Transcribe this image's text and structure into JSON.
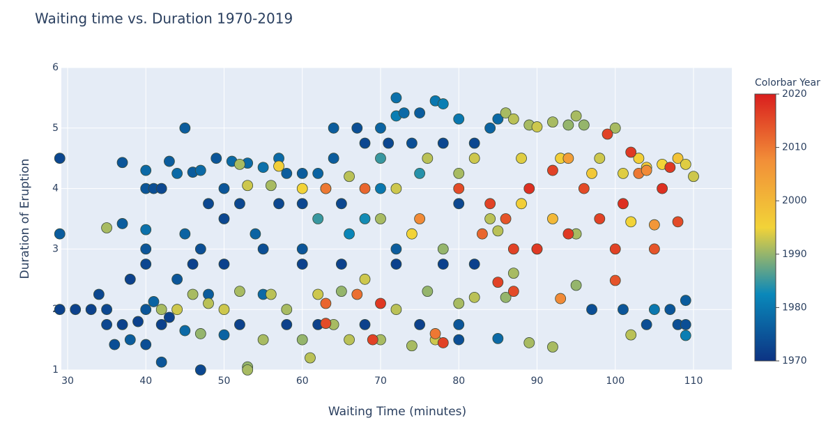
{
  "chart_data": {
    "type": "scatter",
    "title": "Waiting time vs. Duration 1970-2019",
    "x_label": "Waiting Time (minutes)",
    "y_label": "Duration of Eruption",
    "colorbar_title": "Colorbar Year",
    "xlim": [
      29.2,
      114.9
    ],
    "xticks": [
      30,
      40,
      50,
      60,
      70,
      80,
      90,
      100,
      110
    ],
    "ylim": [
      1,
      6
    ],
    "yticks": [
      1,
      2,
      3,
      4,
      5,
      6
    ],
    "colorbar_lim": [
      1970,
      2020
    ],
    "colorbar_ticks": [
      1970,
      1980,
      1990,
      2000,
      2010,
      2020
    ],
    "colorscale": [
      [
        0,
        "#0c3383"
      ],
      [
        0.25,
        "#0a88ba"
      ],
      [
        0.5,
        "#f2d338"
      ],
      [
        0.75,
        "#f28f38"
      ],
      [
        1,
        "#d91e1e"
      ]
    ],
    "grid": true,
    "x": [
      29,
      31,
      33,
      35,
      35,
      36,
      37,
      38,
      37,
      37,
      29,
      29,
      34,
      38,
      39,
      40,
      40,
      41,
      42,
      42,
      43,
      44,
      45,
      46,
      47,
      48,
      50,
      50,
      52,
      55,
      58,
      60,
      62,
      65,
      68,
      72,
      75,
      78,
      80,
      80,
      82,
      85,
      97,
      101,
      104,
      105,
      107,
      108,
      109,
      109,
      109,
      40,
      40,
      40,
      40,
      40,
      41,
      42,
      43,
      44,
      45,
      45,
      46,
      47,
      47,
      48,
      49,
      50,
      50,
      51,
      52,
      53,
      54,
      55,
      57,
      57,
      58,
      60,
      60,
      62,
      63,
      64,
      64,
      65,
      67,
      68,
      70,
      70,
      71,
      72,
      72,
      73,
      74,
      75,
      77,
      78,
      78,
      80,
      80,
      82,
      84,
      85,
      66,
      68,
      72,
      75,
      60,
      62,
      55,
      70,
      35,
      42,
      44,
      46,
      47,
      48,
      50,
      52,
      53,
      53,
      55,
      56,
      58,
      60,
      61,
      62,
      64,
      65,
      66,
      68,
      70,
      72,
      74,
      76,
      77,
      80,
      82,
      86,
      87,
      89,
      92,
      95,
      102,
      52,
      53,
      57,
      56,
      60,
      66,
      70,
      72,
      74,
      76,
      78,
      80,
      82,
      84,
      86,
      87,
      88,
      89,
      90,
      92,
      93,
      94,
      95,
      96,
      97,
      98,
      100,
      101,
      103,
      104,
      106,
      108,
      109,
      110,
      102,
      95,
      90,
      85,
      88,
      92,
      63,
      63,
      67,
      69,
      70,
      78,
      77,
      85,
      87,
      93,
      100,
      63,
      68,
      75,
      80,
      84,
      86,
      89,
      90,
      92,
      94,
      96,
      98,
      99,
      100,
      101,
      102,
      103,
      105,
      105,
      106,
      107,
      108,
      104,
      94,
      87,
      83
    ],
    "y": [
      2,
      2,
      2,
      1.75,
      2,
      1.42,
      1.75,
      2.5,
      4.43,
      3.42,
      4.5,
      3.25,
      2.25,
      1.5,
      1.8,
      2,
      1.42,
      2.13,
      1.13,
      1.75,
      1.87,
      2.5,
      1.65,
      2.75,
      1,
      2.25,
      1.58,
      2.75,
      1.75,
      2.25,
      1.75,
      2.75,
      1.75,
      2.75,
      1.75,
      2.75,
      1.75,
      2.75,
      1.75,
      1.5,
      2.75,
      1.52,
      2,
      2,
      1.75,
      2,
      2,
      1.75,
      1.75,
      2.15,
      1.57,
      4.3,
      4,
      3.32,
      3,
      2.75,
      4,
      4,
      4.45,
      4.25,
      5,
      3.25,
      4.27,
      4.3,
      3,
      3.75,
      4.5,
      4,
      3.5,
      4.45,
      3.75,
      4.42,
      3.25,
      4.35,
      4.5,
      3.75,
      4.25,
      4.25,
      3.75,
      4.25,
      4,
      5,
      4.5,
      3.75,
      5,
      4.75,
      5,
      4,
      4.75,
      5.5,
      5.2,
      5.25,
      4.75,
      5.25,
      5.45,
      5.4,
      4.75,
      5.15,
      3.75,
      4.75,
      5,
      5.15,
      3.25,
      3.5,
      3,
      4.25,
      3,
      3.5,
      3,
      4.5,
      3.35,
      2,
      2,
      2.25,
      1.6,
      2.1,
      2,
      2.3,
      1.05,
      1,
      1.5,
      2.25,
      2,
      1.5,
      1.2,
      2.25,
      1.75,
      2.3,
      1.5,
      2.5,
      1.5,
      2,
      1.4,
      2.3,
      1.5,
      2.1,
      2.2,
      2.2,
      2.6,
      1.45,
      1.38,
      2.4,
      1.58,
      4.4,
      4.05,
      4.37,
      4.05,
      4,
      4.2,
      3.5,
      4,
      3.25,
      4.5,
      3,
      4.25,
      4.5,
      3.5,
      5.25,
      5.15,
      4.5,
      5.05,
      5.02,
      5.1,
      4.5,
      5.05,
      5.2,
      5.05,
      4.25,
      4.5,
      5,
      4.25,
      4.5,
      4.35,
      4.4,
      4.5,
      4.4,
      4.2,
      3.45,
      3.25,
      3,
      3.3,
      3.75,
      3.5,
      1.77,
      2.1,
      2.25,
      1.5,
      2.1,
      1.45,
      1.6,
      2.45,
      2.3,
      2.18,
      2.48,
      4,
      4,
      3.5,
      4,
      3.75,
      3.5,
      4,
      3,
      4.3,
      3.25,
      4,
      3.5,
      4.9,
      3,
      3.75,
      4.6,
      4.25,
      3,
      3.4,
      4,
      4.35,
      3.45,
      4.3,
      4.5,
      3,
      3.25
    ],
    "color_values": [
      1972,
      1972,
      1972,
      1973,
      1973,
      1974,
      1972,
      1972,
      1975,
      1976,
      1973,
      1976,
      1973,
      1976,
      1972,
      1975,
      1974,
      1977,
      1975,
      1972,
      1972,
      1975,
      1978,
      1972,
      1973,
      1976,
      1977,
      1972,
      1972,
      1978,
      1972,
      1972,
      1972,
      1972,
      1972,
      1972,
      1972,
      1972,
      1975,
      1974,
      1972,
      1978,
      1974,
      1975,
      1974,
      1980,
      1975,
      1974,
      1974,
      1976,
      1981,
      1978,
      1975,
      1979,
      1975,
      1973,
      1974,
      1973,
      1976,
      1978,
      1976,
      1977,
      1976,
      1978,
      1974,
      1973,
      1975,
      1975,
      1973,
      1978,
      1973,
      1978,
      1977,
      1979,
      1978,
      1973,
      1976,
      1976,
      1973,
      1977,
      1975,
      1976,
      1976,
      1973,
      1974,
      1973,
      1977,
      1980,
      1973,
      1979,
      1981,
      1978,
      1974,
      1976,
      1980,
      1981,
      1973,
      1980,
      1973,
      1973,
      1977,
      1978,
      1982,
      1983,
      1976,
      1984,
      1975,
      1985,
      1974,
      1985,
      1991,
      1991,
      1993,
      1991,
      1990,
      1992,
      1993,
      1991,
      1990,
      1991,
      1991,
      1992,
      1991,
      1990,
      1992,
      1993,
      1991,
      1990,
      1992,
      1993,
      1991,
      1992,
      1991,
      1990,
      1993,
      1991,
      1992,
      1990,
      1991,
      1991,
      1991,
      1990,
      1992,
      1991,
      1993,
      1996,
      1991,
      1995,
      1992,
      1991,
      1993,
      1995,
      1992,
      1990,
      1991,
      1993,
      1992,
      1991,
      1992,
      1994,
      1991,
      1993,
      1991,
      1996,
      1990,
      1991,
      1990,
      1997,
      1993,
      1991,
      1994,
      1996,
      1997,
      1995,
      1998,
      1994,
      1993,
      1995,
      1991,
      1993,
      1992,
      1996,
      2000,
      2015,
      2012,
      2011,
      2016,
      2017,
      2016,
      2010,
      2016,
      2015,
      2008,
      2014,
      2010,
      2012,
      2008,
      2015,
      2016,
      2014,
      2018,
      2017,
      2016,
      2017,
      2015,
      2016,
      2016,
      2016,
      2018,
      2017,
      2010,
      2014,
      2006,
      2018,
      2017,
      2015,
      2008,
      2005,
      2016,
      2012
    ]
  }
}
